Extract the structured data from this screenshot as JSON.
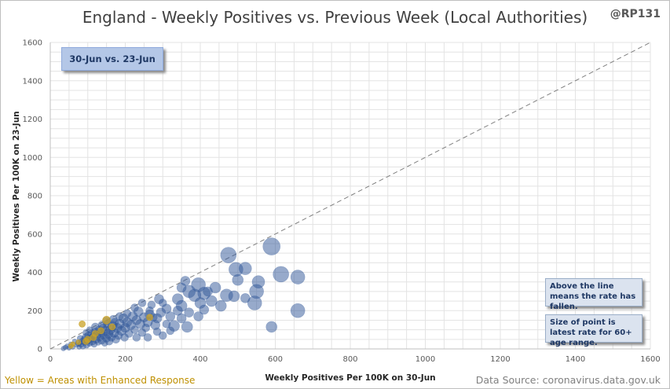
{
  "title": "England - Weekly Positives vs. Previous Week (Local Authorities)",
  "handle": "@RP131",
  "date_box": "30-Jun vs. 23-Jun",
  "notes": [
    "Above the line means the rate has fallen.",
    "Size of point is latest rate for 60+ age range."
  ],
  "footer_left": "Yellow = Areas with Enhanced Response",
  "footer_right": "Data Source: coronavirus.data.gov.uk",
  "colors": {
    "points": "#2f5597",
    "enhanced": "#c9a227",
    "diagonal": "#808080",
    "grid": "#e3e3e3"
  },
  "chart_data": {
    "type": "scatter",
    "xlabel": "Weekly Positives Per 100K on 30-Jun",
    "ylabel": "Weekly Positives Per 100K on 23-Jun",
    "xlim": [
      0,
      1600
    ],
    "ylim": [
      0,
      1600
    ],
    "x_ticks": [
      0,
      200,
      400,
      600,
      800,
      1000,
      1200,
      1400,
      1600
    ],
    "y_ticks": [
      0,
      200,
      400,
      600,
      800,
      1000,
      1200,
      1400,
      1600
    ],
    "grid": true,
    "reference_line": "y = x",
    "series": [
      {
        "points": [
          [
            475,
            490,
            10
          ],
          [
            590,
            535,
            11
          ],
          [
            615,
            390,
            10
          ],
          [
            660,
            375,
            9
          ],
          [
            660,
            200,
            9
          ],
          [
            590,
            115,
            7
          ],
          [
            555,
            350,
            8
          ],
          [
            550,
            300,
            9
          ],
          [
            545,
            240,
            9
          ],
          [
            520,
            420,
            8
          ],
          [
            495,
            415,
            9
          ],
          [
            500,
            360,
            7
          ],
          [
            490,
            275,
            7
          ],
          [
            520,
            265,
            6
          ],
          [
            470,
            280,
            8
          ],
          [
            455,
            225,
            7
          ],
          [
            440,
            320,
            7
          ],
          [
            420,
            300,
            6
          ],
          [
            430,
            250,
            7
          ],
          [
            410,
            290,
            8
          ],
          [
            395,
            335,
            9
          ],
          [
            385,
            280,
            8
          ],
          [
            400,
            240,
            7
          ],
          [
            410,
            205,
            6
          ],
          [
            395,
            170,
            6
          ],
          [
            370,
            300,
            8
          ],
          [
            360,
            355,
            6
          ],
          [
            350,
            320,
            6
          ],
          [
            340,
            260,
            7
          ],
          [
            350,
            225,
            7
          ],
          [
            370,
            190,
            6
          ],
          [
            340,
            200,
            6
          ],
          [
            350,
            160,
            6
          ],
          [
            365,
            115,
            7
          ],
          [
            330,
            120,
            7
          ],
          [
            320,
            170,
            6
          ],
          [
            310,
            210,
            6
          ],
          [
            300,
            240,
            5
          ],
          [
            295,
            190,
            6
          ],
          [
            285,
            160,
            6
          ],
          [
            280,
            125,
            6
          ],
          [
            270,
            230,
            5
          ],
          [
            265,
            180,
            6
          ],
          [
            260,
            140,
            6
          ],
          [
            255,
            110,
            5
          ],
          [
            250,
            165,
            6
          ],
          [
            240,
            130,
            6
          ],
          [
            235,
            195,
            6
          ],
          [
            230,
            150,
            6
          ],
          [
            225,
            100,
            5
          ],
          [
            220,
            170,
            6
          ],
          [
            215,
            125,
            6
          ],
          [
            210,
            80,
            5
          ],
          [
            205,
            140,
            6
          ],
          [
            200,
            110,
            6
          ],
          [
            198,
            60,
            5
          ],
          [
            195,
            160,
            6
          ],
          [
            190,
            95,
            6
          ],
          [
            185,
            130,
            6
          ],
          [
            182,
            70,
            5
          ],
          [
            178,
            110,
            6
          ],
          [
            175,
            50,
            5
          ],
          [
            172,
            140,
            5
          ],
          [
            170,
            85,
            6
          ],
          [
            166,
            120,
            6
          ],
          [
            163,
            60,
            5
          ],
          [
            160,
            100,
            6
          ],
          [
            157,
            40,
            5
          ],
          [
            155,
            80,
            6
          ],
          [
            152,
            130,
            5
          ],
          [
            150,
            55,
            5
          ],
          [
            147,
            95,
            6
          ],
          [
            145,
            30,
            4
          ],
          [
            142,
            70,
            5
          ],
          [
            140,
            110,
            5
          ],
          [
            137,
            45,
            5
          ],
          [
            135,
            85,
            5
          ],
          [
            132,
            60,
            5
          ],
          [
            130,
            100,
            5
          ],
          [
            128,
            35,
            4
          ],
          [
            125,
            75,
            5
          ],
          [
            122,
            50,
            5
          ],
          [
            120,
            90,
            5
          ],
          [
            117,
            25,
            4
          ],
          [
            115,
            65,
            5
          ],
          [
            112,
            40,
            5
          ],
          [
            110,
            80,
            5
          ],
          [
            107,
            55,
            5
          ],
          [
            105,
            30,
            4
          ],
          [
            102,
            70,
            5
          ],
          [
            100,
            45,
            5
          ],
          [
            97,
            20,
            4
          ],
          [
            95,
            60,
            5
          ],
          [
            92,
            35,
            4
          ],
          [
            90,
            50,
            4
          ],
          [
            87,
            15,
            4
          ],
          [
            85,
            40,
            4
          ],
          [
            82,
            25,
            4
          ],
          [
            80,
            55,
            4
          ],
          [
            77,
            10,
            3
          ],
          [
            75,
            30,
            4
          ],
          [
            70,
            20,
            3
          ],
          [
            65,
            40,
            3
          ],
          [
            60,
            10,
            3
          ],
          [
            55,
            25,
            3
          ],
          [
            50,
            5,
            3
          ],
          [
            45,
            15,
            3
          ],
          [
            40,
            8,
            3
          ],
          [
            35,
            2,
            3
          ],
          [
            230,
            60,
            5
          ],
          [
            245,
            85,
            5
          ],
          [
            260,
            60,
            5
          ],
          [
            285,
            90,
            5
          ],
          [
            300,
            70,
            5
          ],
          [
            320,
            95,
            5
          ],
          [
            310,
            130,
            5
          ],
          [
            265,
            200,
            5
          ],
          [
            245,
            240,
            5
          ],
          [
            275,
            165,
            5
          ],
          [
            290,
            260,
            6
          ],
          [
            225,
            215,
            5
          ],
          [
            205,
            185,
            5
          ],
          [
            185,
            170,
            5
          ],
          [
            168,
            155,
            5
          ],
          [
            150,
            145,
            5
          ],
          [
            138,
            125,
            5
          ],
          [
            120,
            115,
            5
          ],
          [
            105,
            100,
            4
          ],
          [
            95,
            85,
            4
          ]
        ]
      },
      {
        "name": "Areas with Enhanced Response",
        "points": [
          [
            85,
            130,
            4
          ],
          [
            150,
            150,
            5
          ],
          [
            265,
            165,
            4
          ],
          [
            135,
            95,
            4
          ],
          [
            120,
            80,
            4
          ],
          [
            165,
            115,
            4
          ],
          [
            115,
            60,
            4
          ],
          [
            100,
            50,
            4
          ],
          [
            95,
            40,
            4
          ],
          [
            75,
            35,
            3
          ],
          [
            60,
            25,
            3
          ],
          [
            55,
            15,
            3
          ]
        ]
      }
    ]
  }
}
